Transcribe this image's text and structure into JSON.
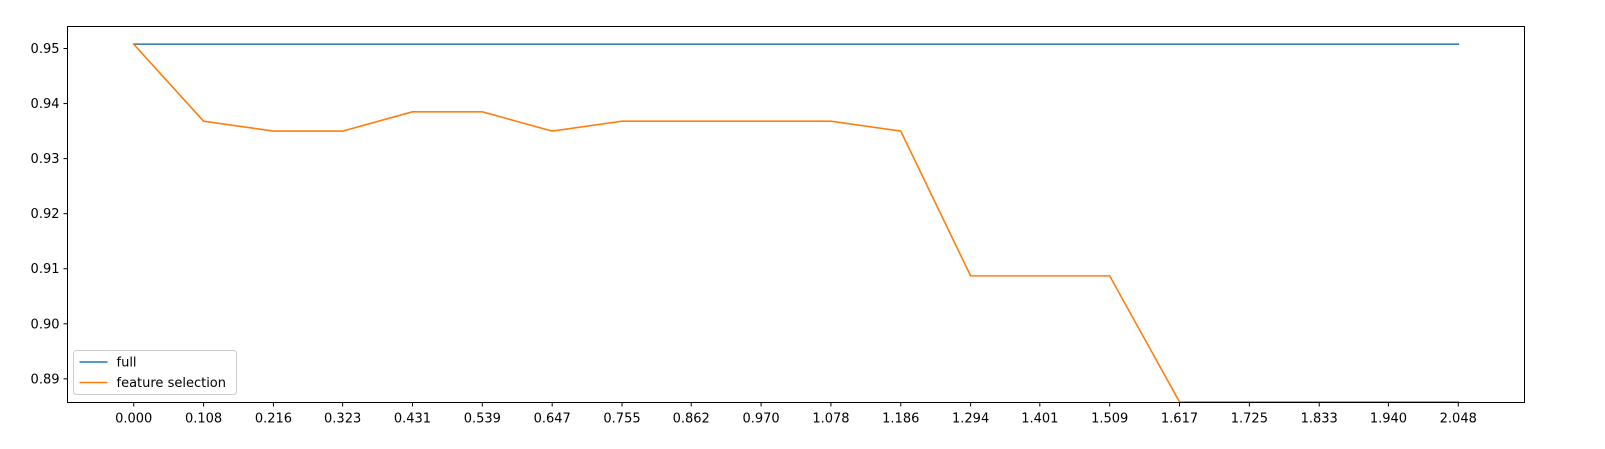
{
  "chart_data": {
    "type": "line",
    "title": "",
    "xlabel": "",
    "ylabel": "",
    "x": [
      0.0,
      0.108,
      0.216,
      0.323,
      0.431,
      0.539,
      0.647,
      0.755,
      0.862,
      0.97,
      1.078,
      1.186,
      1.294,
      1.401,
      1.509,
      1.617,
      1.725,
      1.833,
      1.94,
      2.048
    ],
    "x_tick_labels": [
      "0.000",
      "0.108",
      "0.216",
      "0.323",
      "0.431",
      "0.539",
      "0.647",
      "0.755",
      "0.862",
      "0.970",
      "1.078",
      "1.186",
      "1.294",
      "1.401",
      "1.509",
      "1.617",
      "1.725",
      "1.833",
      "1.940",
      "2.048"
    ],
    "y_ticks": [
      0.89,
      0.9,
      0.91,
      0.92,
      0.93,
      0.94,
      0.95
    ],
    "y_tick_labels": [
      "0.89",
      "0.90",
      "0.91",
      "0.92",
      "0.93",
      "0.94",
      "0.95"
    ],
    "xlim": [
      -0.1024,
      2.1504
    ],
    "ylim": [
      0.8857,
      0.954
    ],
    "grid": false,
    "legend_position": "lower-left",
    "series": [
      {
        "name": "full",
        "color": "#1f77b4",
        "values": [
          0.9508,
          0.9508,
          0.9508,
          0.9508,
          0.9508,
          0.9508,
          0.9508,
          0.9508,
          0.9508,
          0.9508,
          0.9508,
          0.9508,
          0.9508,
          0.9508,
          0.9508,
          0.9508,
          0.9508,
          0.9508,
          0.9508,
          0.9508
        ]
      },
      {
        "name": "feature selection",
        "color": "#ff7f0e",
        "values": [
          0.9508,
          0.9368,
          0.935,
          0.935,
          0.9385,
          0.9385,
          0.935,
          0.9368,
          0.9368,
          0.9368,
          0.9368,
          0.935,
          0.9087,
          0.9087,
          0.9087,
          0.8858,
          0.8858,
          0.8858,
          0.8858,
          0.8858
        ]
      }
    ]
  }
}
